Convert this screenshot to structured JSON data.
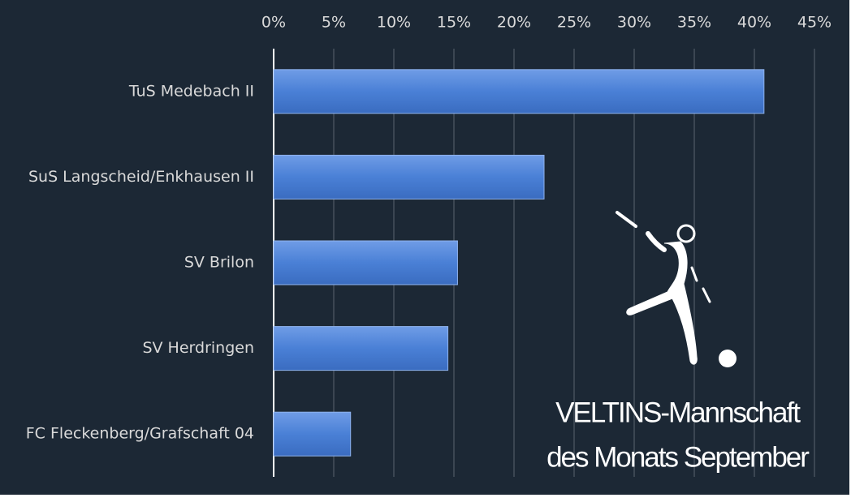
{
  "chart_data": {
    "type": "barh",
    "categories": [
      "TuS Medebach II",
      "SuS Langscheid/Enkhausen II",
      "SV Brilon",
      "SV Herdringen",
      "FC Fleckenberg/Grafschaft 04"
    ],
    "values": [
      40.8,
      22.5,
      15.3,
      14.5,
      6.4
    ],
    "color": "#4a80d6",
    "xlim": [
      0,
      45
    ],
    "xticks": [
      {
        "value": 0,
        "label": "0%"
      },
      {
        "value": 5,
        "label": "5%"
      },
      {
        "value": 10,
        "label": "10%"
      },
      {
        "value": 15,
        "label": "15%"
      },
      {
        "value": 20,
        "label": "20%"
      },
      {
        "value": 25,
        "label": "25%"
      },
      {
        "value": 30,
        "label": "30%"
      },
      {
        "value": 35,
        "label": "35%"
      },
      {
        "value": 40,
        "label": "40%"
      },
      {
        "value": 45,
        "label": "45%"
      }
    ],
    "grid": true,
    "annotations": [
      "VELTINS-Mannschaft",
      "des Monats September"
    ]
  }
}
